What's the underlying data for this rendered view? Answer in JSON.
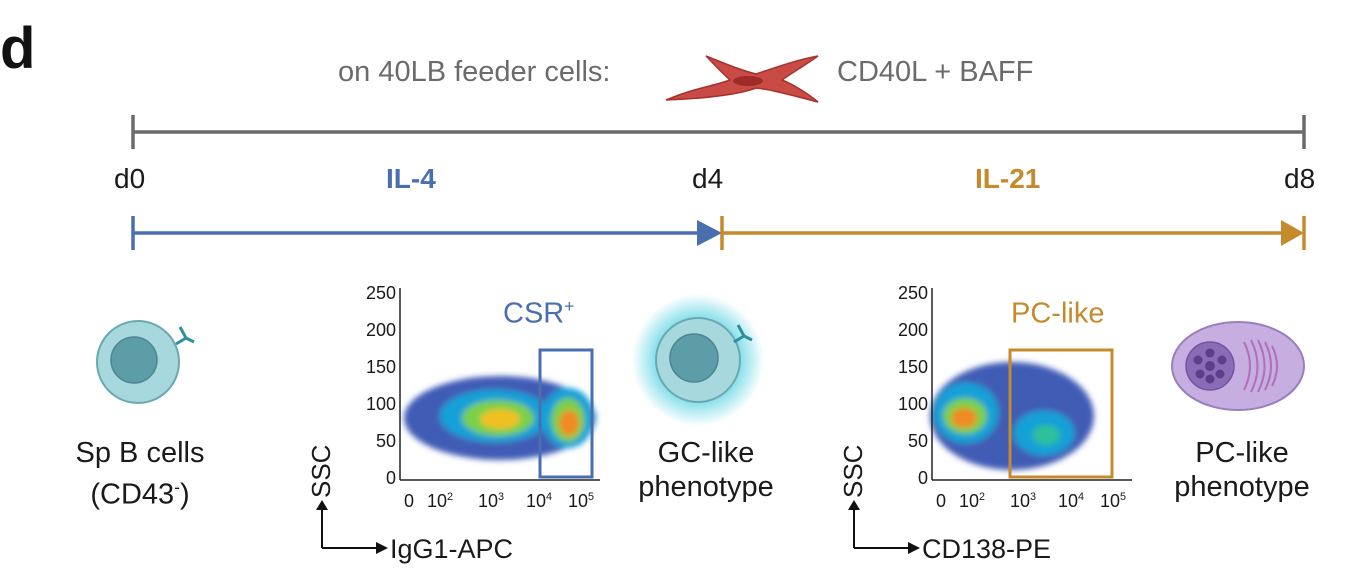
{
  "panel_letter": "d",
  "feeder": {
    "prefix": "on 40LB feeder cells:",
    "suffix": "CD40L + BAFF",
    "cell_icon": "fibroblast-icon"
  },
  "timeline": {
    "days": [
      "d0",
      "d4",
      "d8"
    ],
    "phases": [
      {
        "label": "IL-4",
        "color": "#4a6fb0"
      },
      {
        "label": "IL-21",
        "color": "#c48a2c"
      }
    ]
  },
  "cells": [
    {
      "label_line1": "Sp B cells",
      "label_line2_main": "(CD43",
      "label_line2_sup": "-",
      "label_line2_end": ")",
      "icon": "b-cell-icon"
    },
    {
      "label_line1": "GC-like",
      "label_line2": "phenotype",
      "icon": "gc-b-cell-icon"
    },
    {
      "label_line1": "PC-like",
      "label_line2": "phenotype",
      "icon": "plasma-cell-icon"
    }
  ],
  "plots": [
    {
      "ylabel": "SSC",
      "xlabel": "IgG1-APC",
      "y_ticks": [
        "250",
        "200",
        "150",
        "100",
        "50",
        "0"
      ],
      "x_ticks": [
        {
          "base": "0",
          "exp": ""
        },
        {
          "base": "10",
          "exp": "2"
        },
        {
          "base": "10",
          "exp": "3"
        },
        {
          "base": "10",
          "exp": "4"
        },
        {
          "base": "10",
          "exp": "5"
        }
      ],
      "gate": {
        "label": "CSR",
        "sup": "+",
        "color": "#4a6fb0"
      }
    },
    {
      "ylabel": "SSC",
      "xlabel": "CD138-PE",
      "y_ticks": [
        "250",
        "200",
        "150",
        "100",
        "50",
        "0"
      ],
      "x_ticks": [
        {
          "base": "0",
          "exp": ""
        },
        {
          "base": "10",
          "exp": "2"
        },
        {
          "base": "10",
          "exp": "3"
        },
        {
          "base": "10",
          "exp": "4"
        },
        {
          "base": "10",
          "exp": "5"
        }
      ],
      "gate": {
        "label": "PC-like",
        "sup": "",
        "color": "#c48a2c"
      }
    }
  ],
  "colors": {
    "grey_line": "#6b6b6b",
    "blue": "#4a6fb0",
    "orange": "#c48a2c",
    "feeder_cell": "#c84b45"
  }
}
